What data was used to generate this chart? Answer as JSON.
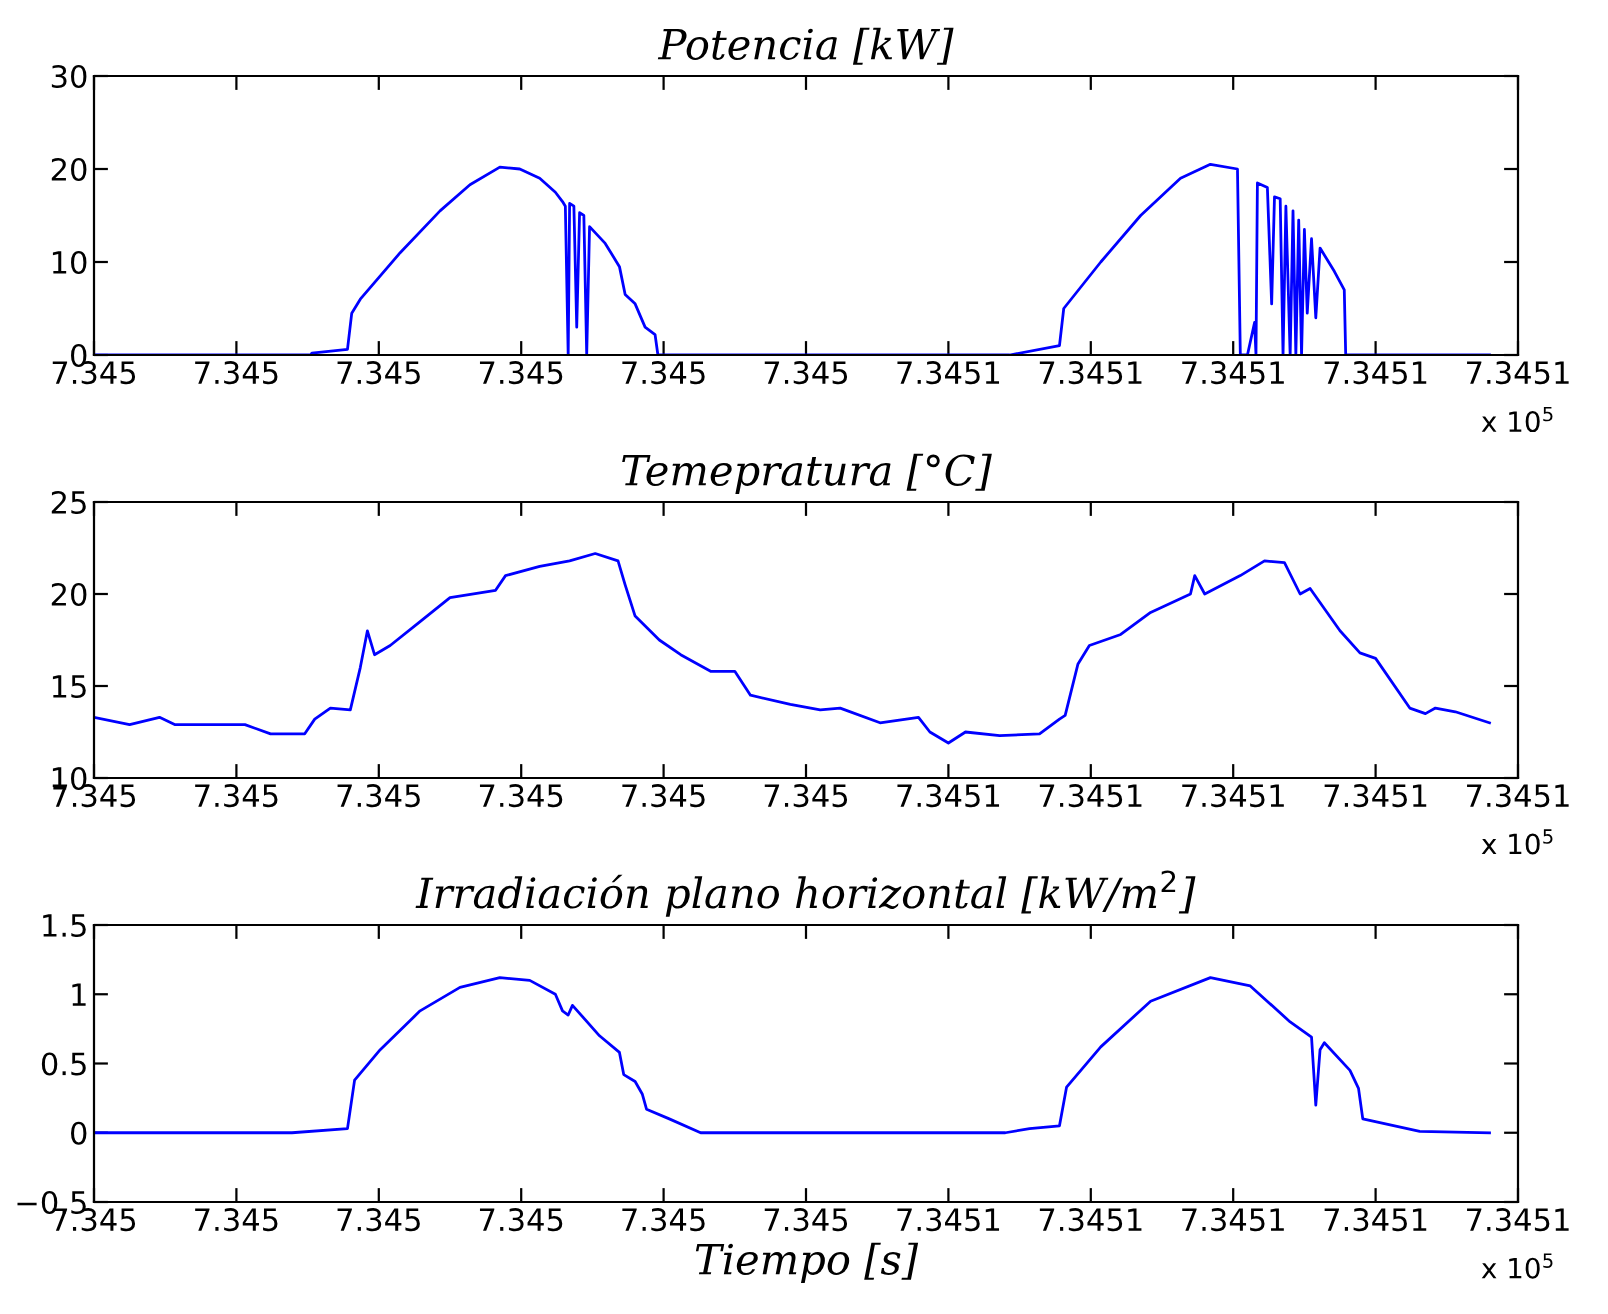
{
  "chart_data": [
    {
      "type": "line",
      "title": "Potencia [kW]",
      "xlim": [
        7.345,
        7.3451
      ],
      "xticks": [
        {
          "value": 7.345,
          "label": "7.345"
        },
        {
          "value": 7.34501,
          "label": "7.345"
        },
        {
          "value": 7.34502,
          "label": "7.345"
        },
        {
          "value": 7.34503,
          "label": "7.345"
        },
        {
          "value": 7.34504,
          "label": "7.345"
        },
        {
          "value": 7.34505,
          "label": "7.345"
        },
        {
          "value": 7.34506,
          "label": "7.3451"
        },
        {
          "value": 7.34507,
          "label": "7.3451"
        },
        {
          "value": 7.34508,
          "label": "7.3451"
        },
        {
          "value": 7.34509,
          "label": "7.3451"
        },
        {
          "value": 7.3451,
          "label": "7.3451"
        }
      ],
      "ylim": [
        0,
        30
      ],
      "yticks": [
        0,
        10,
        20,
        30
      ],
      "grid": false,
      "annotations": [
        "x 10$^{5}$"
      ],
      "series": [
        {
          "color": "#0000ff",
          "x": [
            7.345,
            7.3450152,
            7.3450153,
            7.3450178,
            7.3450181,
            7.3450187,
            7.3450215,
            7.3450243,
            7.3450264,
            7.3450285,
            7.3450299,
            7.3450313,
            7.3450324,
            7.3450329,
            7.3450331,
            7.3450333,
            7.3450334,
            7.3450337,
            7.3450339,
            7.3450341,
            7.3450344,
            7.3450346,
            7.3450348,
            7.3450359,
            7.3450369,
            7.3450373,
            7.345038,
            7.3450387,
            7.3450394,
            7.3450396,
            7.3450643,
            7.3450678,
            7.3450681,
            7.3450707,
            7.3450735,
            7.3450763,
            7.3450784,
            7.3450803,
            7.3450805,
            7.345081,
            7.3450815,
            7.3450816,
            7.3450817,
            7.3450824,
            7.3450827,
            7.3450829,
            7.3450833,
            7.3450835,
            7.3450837,
            7.345084,
            7.3450842,
            7.3450844,
            7.3450846,
            7.3450848,
            7.345085,
            7.3450852,
            7.3450855,
            7.3450858,
            7.3450861,
            7.3450871,
            7.3450878,
            7.3450879,
            7.345098
          ],
          "values": [
            0,
            0,
            0.2,
            0.6,
            4.5,
            6,
            11,
            15.5,
            18.3,
            20.2,
            20,
            19,
            17.5,
            16.5,
            16,
            0,
            16.3,
            16,
            3,
            15.3,
            15,
            0,
            13.8,
            12,
            9.5,
            6.5,
            5.5,
            3,
            2.2,
            0,
            0,
            1,
            5,
            10,
            15,
            19,
            20.5,
            20,
            0,
            0,
            3.5,
            0,
            18.5,
            18,
            5.5,
            17,
            16.8,
            0,
            16,
            0,
            15.5,
            0,
            14.5,
            0,
            13.5,
            4.5,
            12.5,
            4,
            11.5,
            9,
            7,
            0,
            0
          ]
        }
      ]
    },
    {
      "type": "line",
      "title": "Temepratura [°C]",
      "xlim": [
        7.345,
        7.3451
      ],
      "xticks": [
        {
          "value": 7.345,
          "label": "7.345"
        },
        {
          "value": 7.34501,
          "label": "7.345"
        },
        {
          "value": 7.34502,
          "label": "7.345"
        },
        {
          "value": 7.34503,
          "label": "7.345"
        },
        {
          "value": 7.34504,
          "label": "7.345"
        },
        {
          "value": 7.34505,
          "label": "7.345"
        },
        {
          "value": 7.34506,
          "label": "7.3451"
        },
        {
          "value": 7.34507,
          "label": "7.3451"
        },
        {
          "value": 7.34508,
          "label": "7.3451"
        },
        {
          "value": 7.34509,
          "label": "7.3451"
        },
        {
          "value": 7.3451,
          "label": "7.3451"
        }
      ],
      "ylim": [
        10,
        25
      ],
      "yticks": [
        10,
        15,
        20,
        25
      ],
      "grid": false,
      "annotations": [
        "x 10$^{5}$"
      ],
      "series": [
        {
          "color": "#0000ff",
          "x": [
            7.345,
            7.3450025,
            7.3450046,
            7.3450057,
            7.3450106,
            7.3450124,
            7.3450148,
            7.3450155,
            7.3450166,
            7.345018,
            7.3450187,
            7.3450192,
            7.3450197,
            7.3450208,
            7.3450229,
            7.345025,
            7.3450282,
            7.3450289,
            7.3450313,
            7.3450334,
            7.3450352,
            7.3450368,
            7.3450373,
            7.345038,
            7.3450397,
            7.3450412,
            7.3450433,
            7.345045,
            7.3450461,
            7.3450489,
            7.345051,
            7.3450524,
            7.3450552,
            7.3450579,
            7.3450587,
            7.34506,
            7.3450612,
            7.3450636,
            7.3450664,
            7.3450678,
            7.3450682,
            7.3450691,
            7.3450699,
            7.3450721,
            7.3450742,
            7.345077,
            7.3450773,
            7.345078,
            7.3450805,
            7.3450822,
            7.3450836,
            7.3450847,
            7.3450854,
            7.3450875,
            7.3450889,
            7.34509,
            7.3450924,
            7.3450935,
            7.3450942,
            7.3450956,
            7.345098
          ],
          "values": [
            13.3,
            12.9,
            13.3,
            12.9,
            12.9,
            12.4,
            12.4,
            13.2,
            13.8,
            13.7,
            16,
            18,
            16.7,
            17.2,
            18.5,
            19.8,
            20.2,
            21,
            21.5,
            21.8,
            22.2,
            21.8,
            20.5,
            18.8,
            17.5,
            16.7,
            15.8,
            15.8,
            14.5,
            14,
            13.7,
            13.8,
            13,
            13.3,
            12.5,
            11.9,
            12.5,
            12.3,
            12.4,
            13.2,
            13.4,
            16.2,
            17.2,
            17.8,
            19,
            20,
            21,
            20,
            21,
            21.8,
            21.7,
            20,
            20.3,
            18,
            16.8,
            16.5,
            13.8,
            13.5,
            13.8,
            13.6,
            13
          ]
        }
      ]
    },
    {
      "type": "line",
      "title": "Irradiación plano horizontal [kW/m$^{2}$]",
      "xlabel": "Tiempo [s]",
      "xlim": [
        7.345,
        7.3451
      ],
      "xticks": [
        {
          "value": 7.345,
          "label": "7.345"
        },
        {
          "value": 7.34501,
          "label": "7.345"
        },
        {
          "value": 7.34502,
          "label": "7.345"
        },
        {
          "value": 7.34503,
          "label": "7.345"
        },
        {
          "value": 7.34504,
          "label": "7.345"
        },
        {
          "value": 7.34505,
          "label": "7.345"
        },
        {
          "value": 7.34506,
          "label": "7.3451"
        },
        {
          "value": 7.34507,
          "label": "7.3451"
        },
        {
          "value": 7.34508,
          "label": "7.3451"
        },
        {
          "value": 7.34509,
          "label": "7.3451"
        },
        {
          "value": 7.3451,
          "label": "7.3451"
        }
      ],
      "ylim": [
        -0.5,
        1.5
      ],
      "yticks": [
        {
          "value": -0.5,
          "label": "−0.5"
        },
        0,
        0.5,
        1,
        1.5
      ],
      "grid": false,
      "annotations": [
        "x 10$^{5}$"
      ],
      "series": [
        {
          "color": "#0000ff",
          "x": [
            7.345,
            7.3450139,
            7.3450178,
            7.3450183,
            7.3450201,
            7.3450229,
            7.3450257,
            7.3450285,
            7.3450306,
            7.3450324,
            7.3450329,
            7.3450333,
            7.3450336,
            7.3450355,
            7.3450369,
            7.3450372,
            7.345038,
            7.3450385,
            7.3450388,
            7.3450404,
            7.3450426,
            7.345064,
            7.3450657,
            7.3450678,
            7.3450683,
            7.3450707,
            7.3450742,
            7.3450784,
            7.3450812,
            7.345084,
            7.3450855,
            7.3450858,
            7.3450861,
            7.3450864,
            7.3450882,
            7.3450888,
            7.3450891,
            7.3450931,
            7.345098
          ],
          "values": [
            0,
            0,
            0.03,
            0.38,
            0.6,
            0.88,
            1.05,
            1.12,
            1.1,
            1.0,
            0.88,
            0.85,
            0.92,
            0.7,
            0.58,
            0.42,
            0.37,
            0.28,
            0.17,
            0.1,
            0,
            0,
            0.03,
            0.05,
            0.33,
            0.62,
            0.95,
            1.12,
            1.06,
            0.8,
            0.69,
            0.2,
            0.6,
            0.65,
            0.45,
            0.32,
            0.1,
            0.01,
            0
          ]
        }
      ]
    }
  ]
}
